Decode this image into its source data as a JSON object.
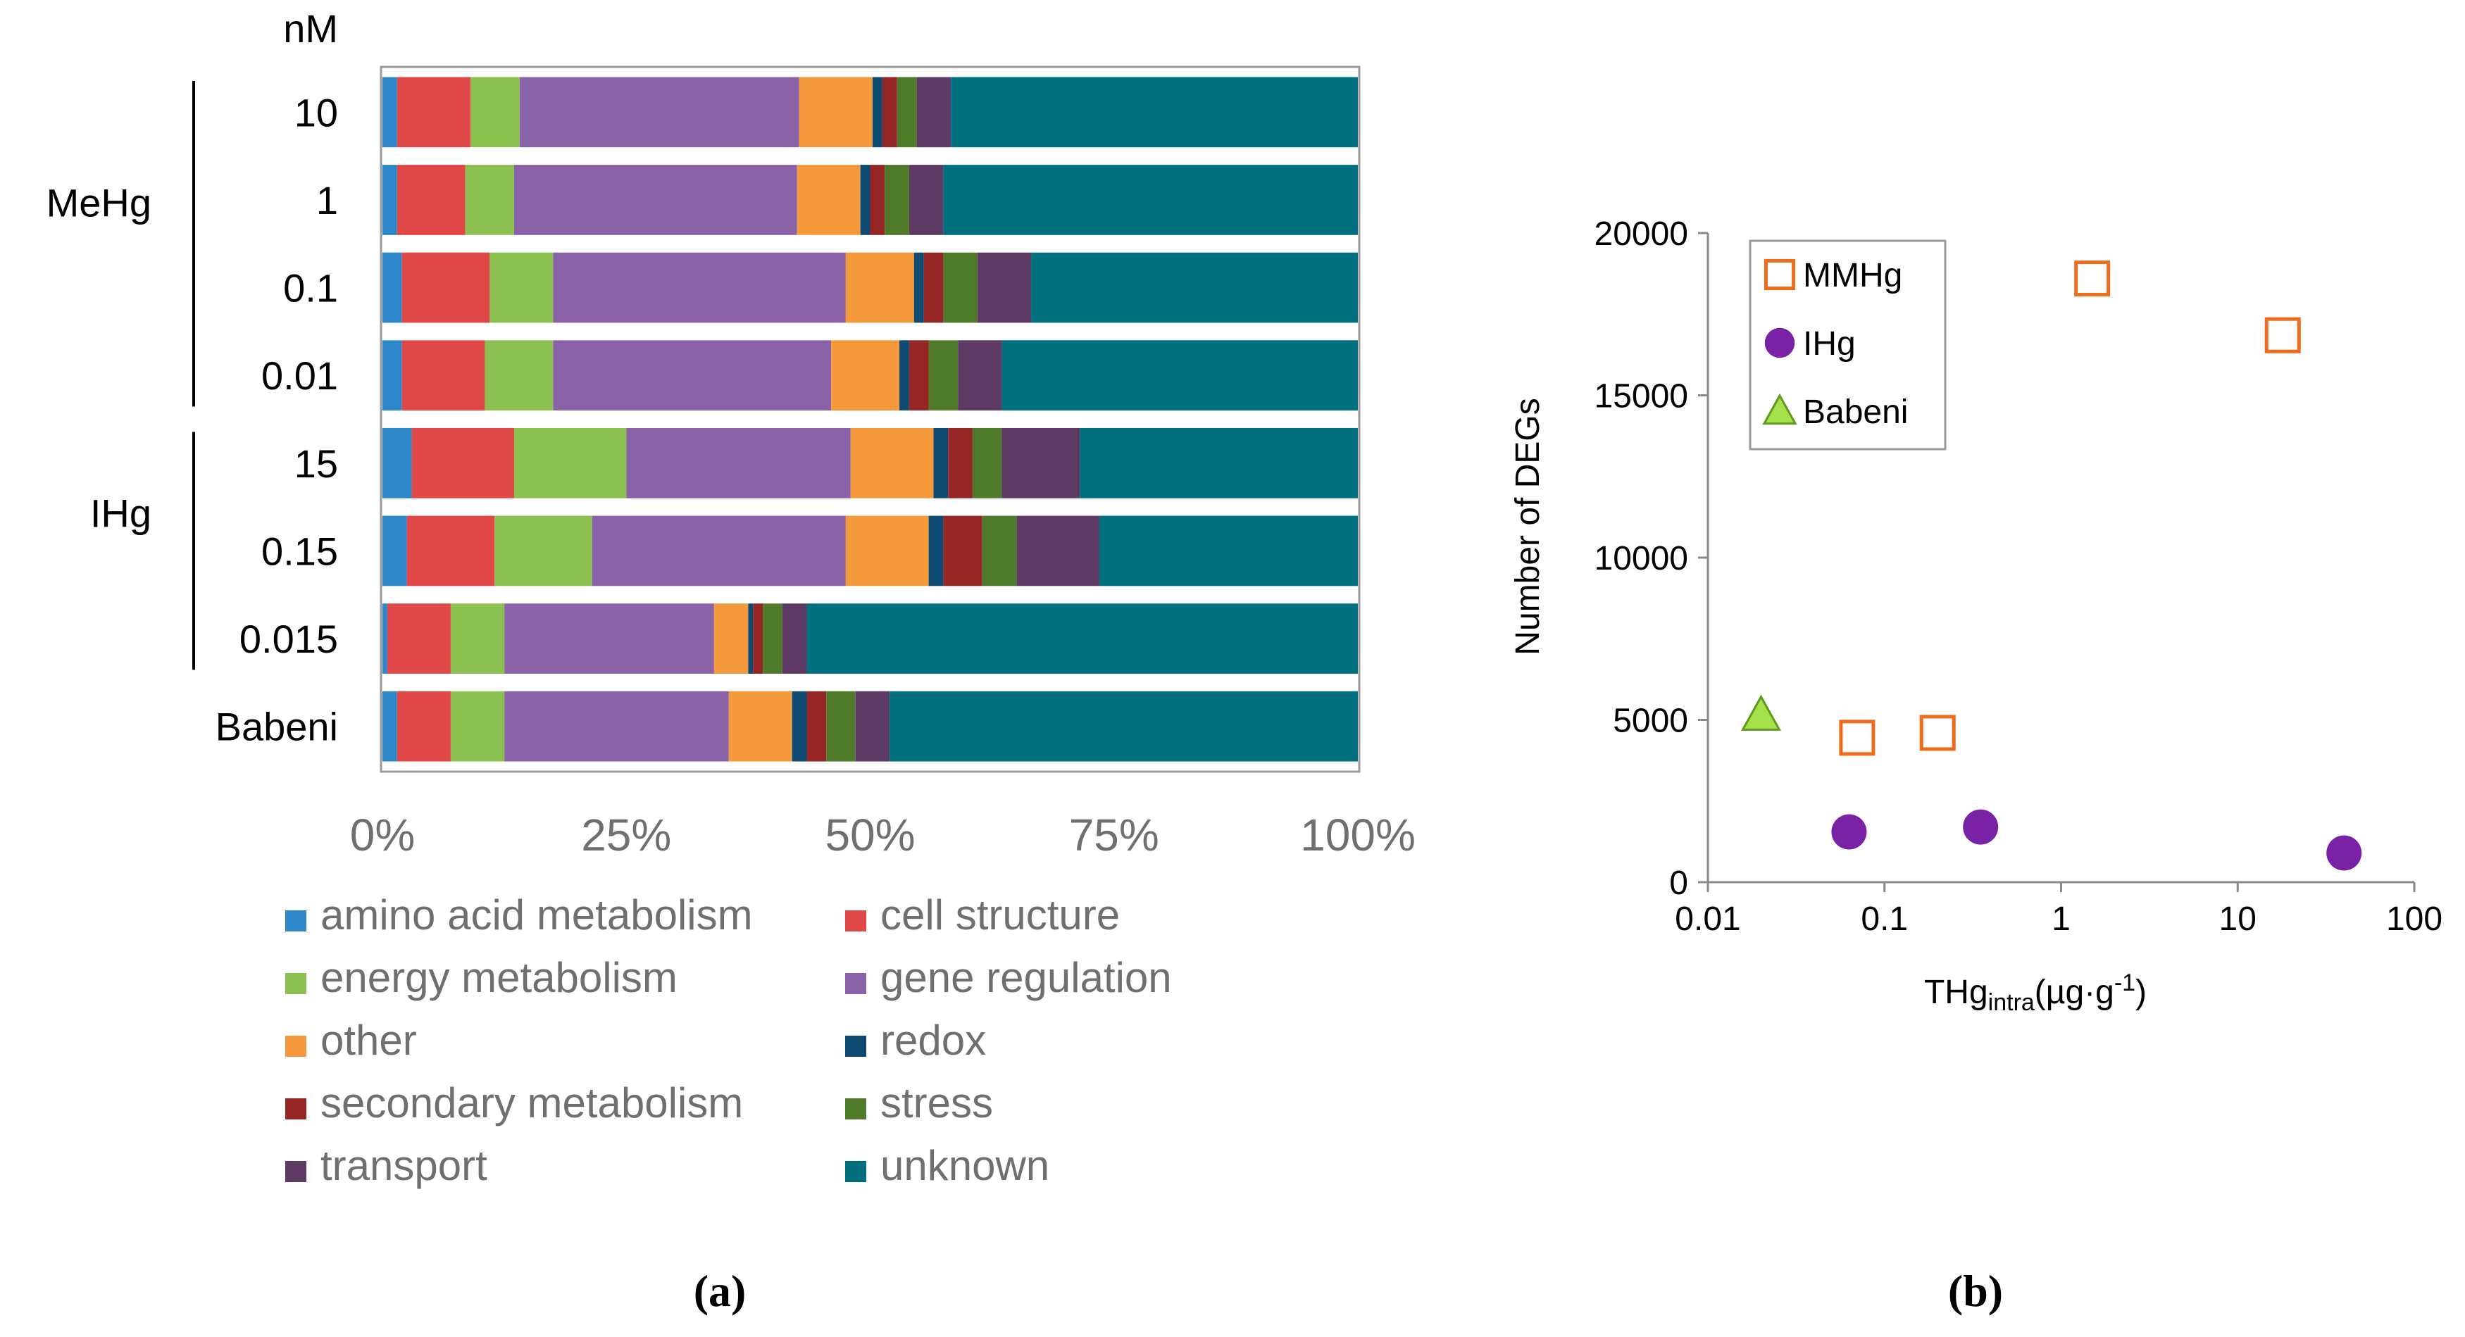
{
  "colors": {
    "amino acid metabolism": "#2d87c8",
    "cell structure": "#e04848",
    "energy metabolism": "#8cc152",
    "gene regulation": "#8a62a8",
    "other": "#f59a3c",
    "redox": "#0f4a72",
    "secondary metabolism": "#962626",
    "stress": "#4f7a2a",
    "transport": "#5c3a63",
    "unknown": "#00707f",
    "mmhg": "#ef6c1f",
    "ihg": "#7a22a6",
    "babeni": "#a6e04a"
  },
  "chart_data": [
    {
      "panel": "a",
      "type": "bar",
      "orientation": "horizontal",
      "stacked": "percent",
      "unit_label": "nM",
      "categories": [
        "10",
        "1",
        "0.1",
        "0.01",
        "15",
        "0.15",
        "0.015",
        "Babeni"
      ],
      "groups": [
        {
          "label": "MeHg",
          "categories": [
            "10",
            "1",
            "0.1",
            "0.01"
          ]
        },
        {
          "label": "IHg",
          "categories": [
            "15",
            "0.15",
            "0.015"
          ]
        }
      ],
      "series": [
        {
          "name": "amino acid metabolism",
          "values": [
            1.5,
            1.5,
            2,
            2,
            3,
            2.5,
            0.5,
            1.5
          ]
        },
        {
          "name": "cell structure",
          "values": [
            7.5,
            7,
            9,
            8.5,
            10.5,
            9,
            6.5,
            5.5
          ]
        },
        {
          "name": "energy metabolism",
          "values": [
            5,
            5,
            6.5,
            7,
            11.5,
            10,
            5.5,
            5.5
          ]
        },
        {
          "name": "gene regulation",
          "values": [
            28.5,
            29,
            30,
            28.5,
            23,
            26,
            21.5,
            23
          ]
        },
        {
          "name": "other",
          "values": [
            7.5,
            6.5,
            7,
            7,
            8.5,
            8.5,
            3.5,
            6.5
          ]
        },
        {
          "name": "redox",
          "values": [
            1,
            1,
            1,
            1,
            1.5,
            1.5,
            0.5,
            1.5
          ]
        },
        {
          "name": "secondary metabolism",
          "values": [
            1.5,
            1.5,
            2,
            2,
            2.5,
            4,
            1,
            2
          ]
        },
        {
          "name": "stress",
          "values": [
            2,
            2.5,
            3.5,
            3,
            3,
            3.5,
            2,
            3
          ]
        },
        {
          "name": "transport",
          "values": [
            3.5,
            3.5,
            5.5,
            4.5,
            8,
            8.5,
            2.5,
            3.5
          ]
        },
        {
          "name": "unknown",
          "values": [
            41.5,
            42.5,
            33.5,
            36.5,
            28.5,
            26.5,
            56.5,
            48
          ]
        }
      ],
      "xlim": [
        0,
        100
      ],
      "xticks": [
        "0%",
        "25%",
        "50%",
        "75%",
        "100%"
      ],
      "legend_position": "bottom",
      "caption": "(a)"
    },
    {
      "panel": "b",
      "type": "scatter",
      "xscale": "log",
      "xlim": [
        0.01,
        100
      ],
      "ylim": [
        0,
        20000
      ],
      "xticks": [
        "0.01",
        "0.1",
        "1",
        "10",
        "100"
      ],
      "yticks": [
        "0",
        "5000",
        "10000",
        "15000",
        "20000"
      ],
      "ylabel": "Number of DEGs",
      "xlabel_main": "THg",
      "xlabel_sub": "intra",
      "xlabel_unit_open": "(µg·g",
      "xlabel_sup": "-1",
      "xlabel_unit_close": ")",
      "series": [
        {
          "name": "MMHg",
          "marker": "square-open",
          "x": [
            0.07,
            0.2,
            1.5,
            18
          ],
          "y": [
            4450,
            4600,
            18600,
            16850
          ]
        },
        {
          "name": "IHg",
          "marker": "circle-filled",
          "x": [
            0.063,
            0.35,
            40
          ],
          "y": [
            1550,
            1700,
            900
          ]
        },
        {
          "name": "Babeni",
          "marker": "triangle-filled",
          "x": [
            0.02
          ],
          "y": [
            5150
          ]
        }
      ],
      "legend_position": "top-left",
      "caption": "(b)"
    }
  ]
}
